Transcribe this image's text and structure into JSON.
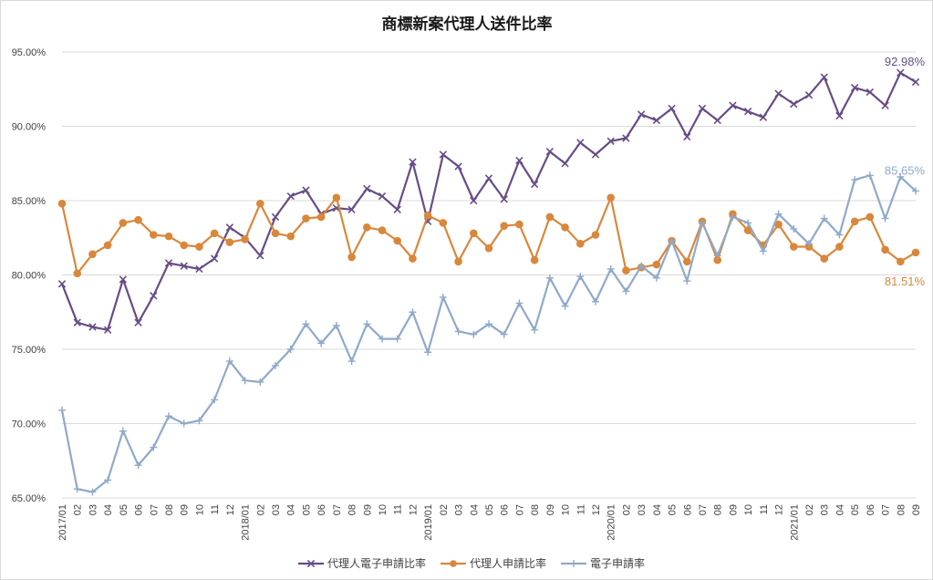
{
  "chart_data": {
    "type": "line",
    "title": "商標新案代理人送件比率",
    "x": [
      "2017/01",
      "02",
      "03",
      "04",
      "05",
      "06",
      "07",
      "08",
      "09",
      "10",
      "11",
      "12",
      "2018/01",
      "02",
      "03",
      "04",
      "05",
      "06",
      "07",
      "08",
      "09",
      "10",
      "11",
      "12",
      "2019/01",
      "02",
      "03",
      "04",
      "05",
      "06",
      "07",
      "08",
      "09",
      "10",
      "11",
      "12",
      "2020/01",
      "02",
      "03",
      "04",
      "05",
      "06",
      "07",
      "08",
      "09",
      "10",
      "11",
      "12",
      "2021/01",
      "02",
      "03",
      "04",
      "05",
      "06",
      "07",
      "08",
      "09"
    ],
    "ylim": [
      65,
      95
    ],
    "yticks": [
      "65.00%",
      "70.00%",
      "75.00%",
      "80.00%",
      "85.00%",
      "90.00%",
      "95.00%"
    ],
    "grid": true,
    "legend_position": "bottom",
    "series": [
      {
        "name": "代理人電子申請比率",
        "color": "#674C87",
        "marker": "x",
        "end_label": "92.98%",
        "values": [
          79.4,
          76.8,
          76.5,
          76.3,
          79.7,
          76.8,
          78.6,
          80.8,
          80.6,
          80.4,
          81.1,
          83.2,
          82.5,
          81.3,
          83.9,
          85.3,
          85.7,
          84.1,
          84.5,
          84.4,
          85.8,
          85.3,
          84.4,
          87.6,
          83.6,
          88.1,
          87.3,
          85.0,
          86.5,
          85.1,
          87.7,
          86.1,
          88.3,
          87.5,
          88.9,
          88.1,
          89.0,
          89.2,
          90.8,
          90.4,
          91.2,
          89.3,
          91.2,
          90.4,
          91.4,
          91.0,
          90.6,
          92.2,
          91.5,
          92.1,
          93.3,
          90.7,
          92.6,
          92.3,
          91.4,
          93.6,
          92.98
        ]
      },
      {
        "name": "代理人申請比率",
        "color": "#D9873B",
        "marker": "circle",
        "end_label": "81.51%",
        "values": [
          84.8,
          80.1,
          81.4,
          82.0,
          83.5,
          83.7,
          82.7,
          82.6,
          82.0,
          81.9,
          82.8,
          82.2,
          82.4,
          84.8,
          82.8,
          82.6,
          83.8,
          83.9,
          85.2,
          81.2,
          83.2,
          83.0,
          82.3,
          81.1,
          84.0,
          83.5,
          80.9,
          82.8,
          81.8,
          83.3,
          83.4,
          81.0,
          83.9,
          83.2,
          82.1,
          82.7,
          85.2,
          80.3,
          80.5,
          80.7,
          82.3,
          80.9,
          83.6,
          81.0,
          84.1,
          83.0,
          82.0,
          83.4,
          81.9,
          81.9,
          81.1,
          81.9,
          83.6,
          83.9,
          81.7,
          80.9,
          81.51
        ]
      },
      {
        "name": "電子申請率",
        "color": "#8FA9C9",
        "marker": "plus",
        "end_label": "85.65%",
        "values": [
          70.9,
          65.6,
          65.4,
          66.2,
          69.5,
          67.2,
          68.4,
          70.5,
          70.0,
          70.2,
          71.6,
          74.2,
          72.9,
          72.8,
          73.9,
          75.0,
          76.7,
          75.4,
          76.6,
          74.2,
          76.7,
          75.7,
          75.7,
          77.5,
          74.8,
          78.5,
          76.2,
          76.0,
          76.7,
          76.0,
          78.1,
          76.3,
          79.8,
          77.9,
          79.9,
          78.2,
          80.4,
          78.9,
          80.6,
          79.8,
          82.3,
          79.6,
          83.5,
          81.3,
          83.9,
          83.5,
          81.6,
          84.1,
          83.1,
          82.1,
          83.8,
          82.7,
          86.4,
          86.7,
          83.8,
          86.6,
          85.65
        ]
      }
    ]
  }
}
